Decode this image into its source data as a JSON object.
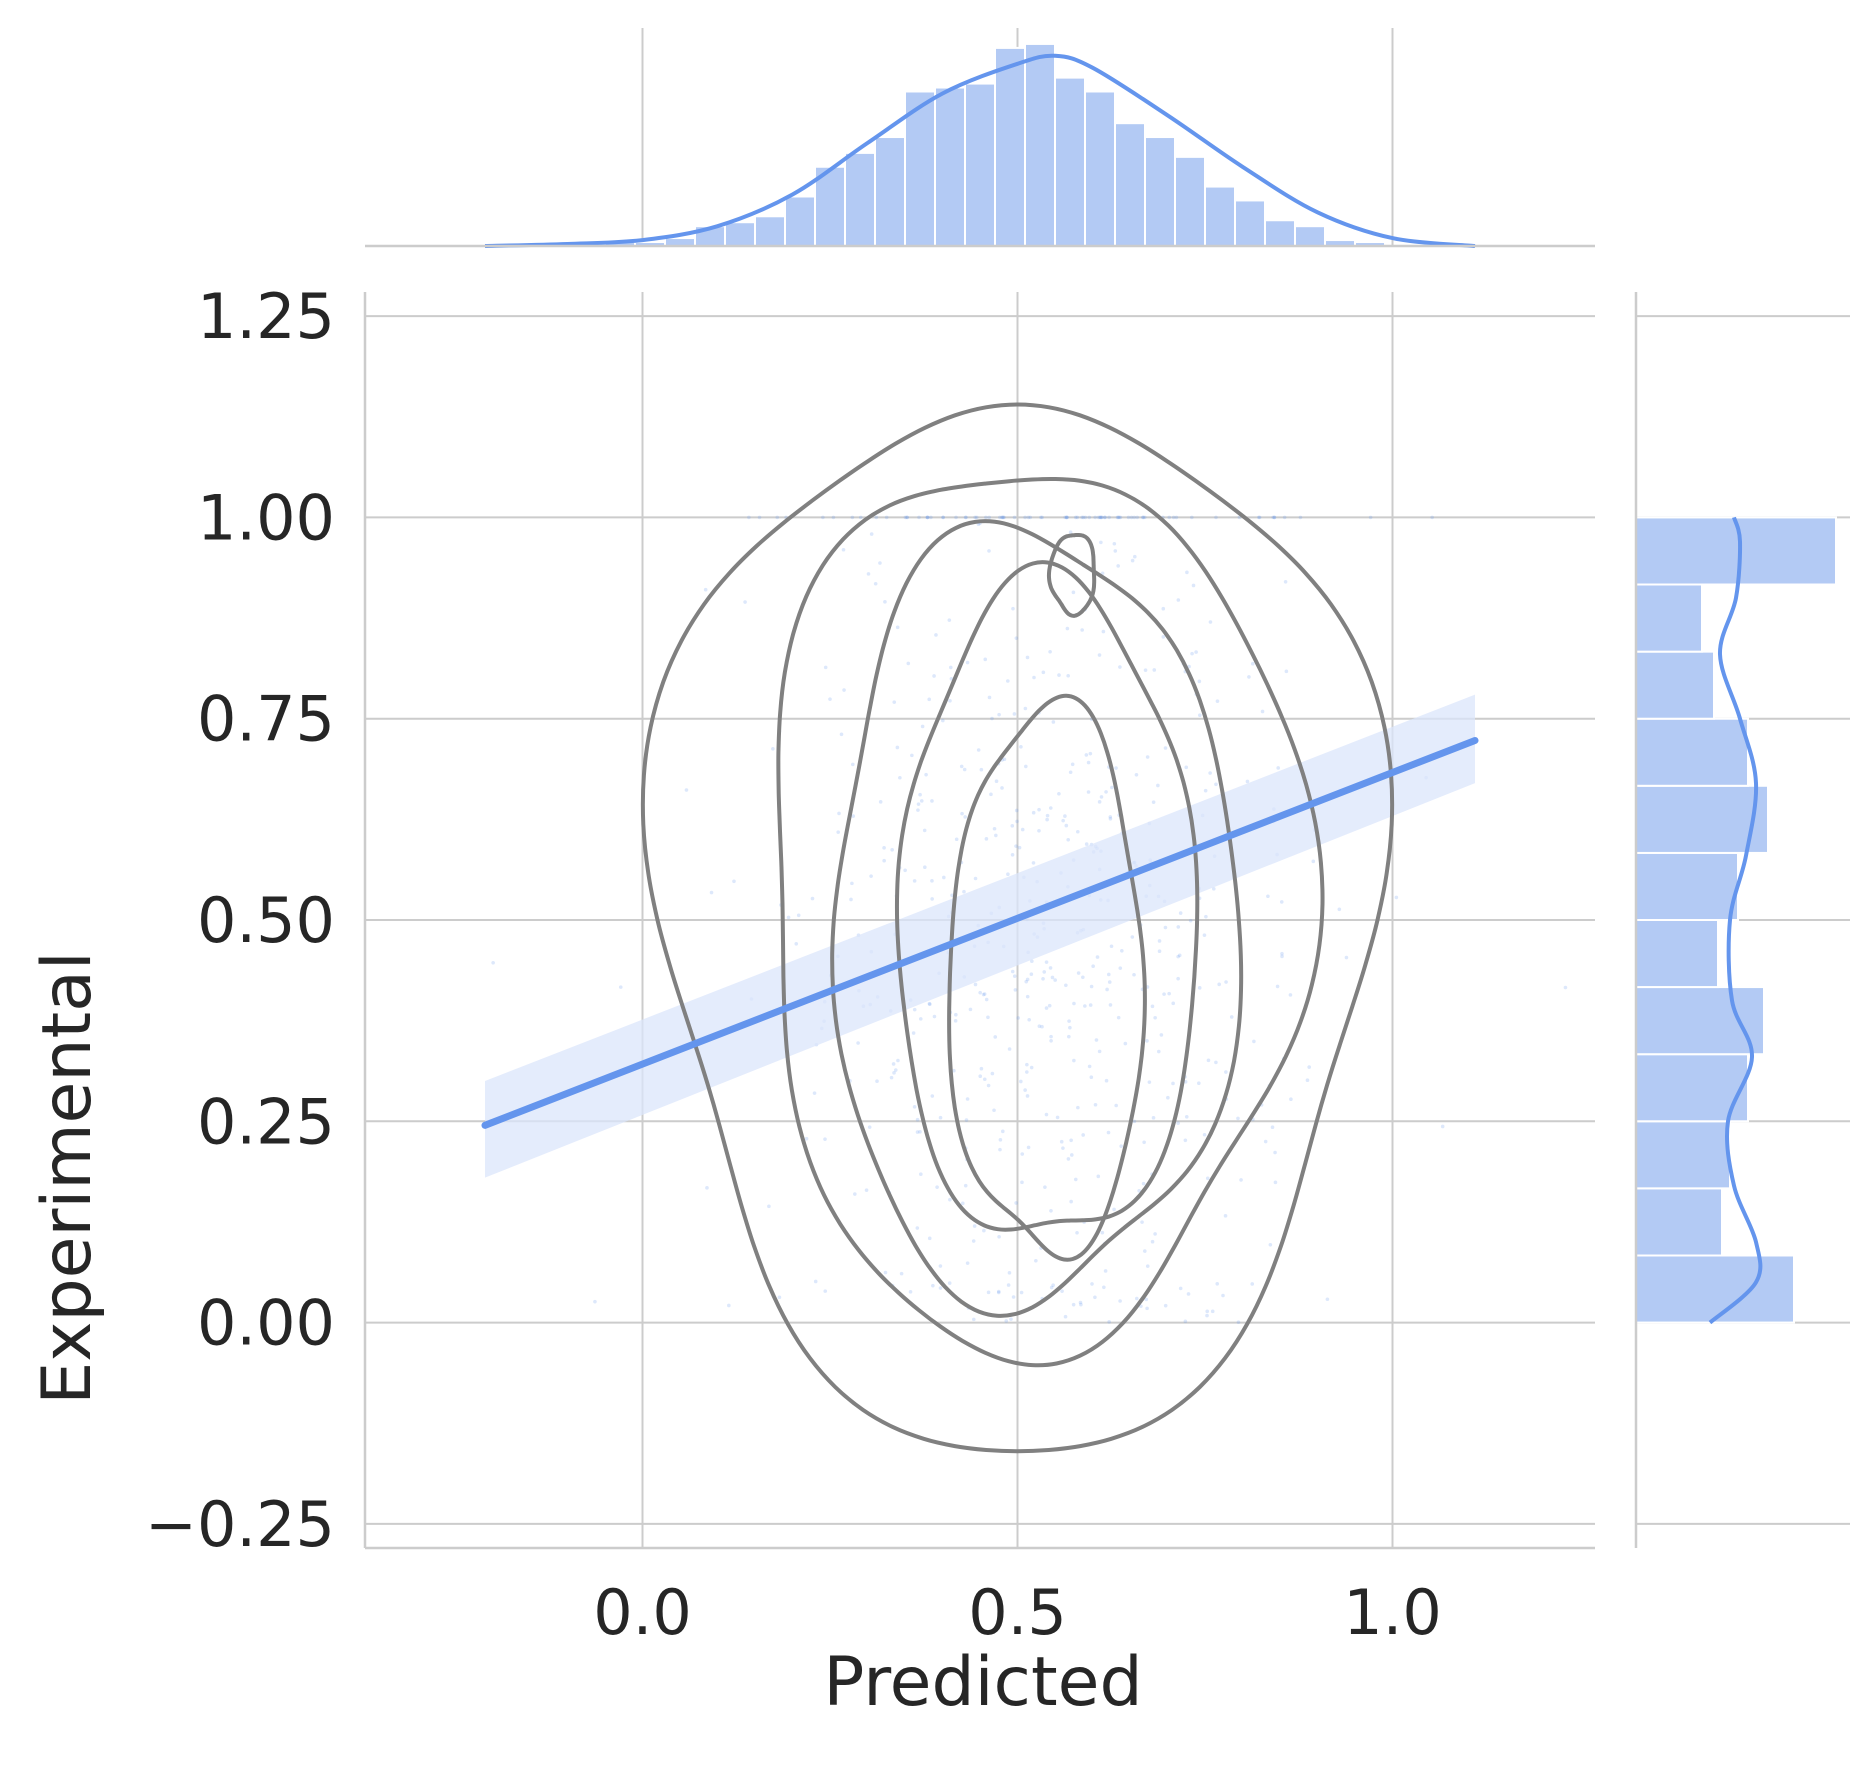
{
  "chart_data": {
    "type": "scatter",
    "xlabel": "Predicted",
    "ylabel": "Experimental",
    "xlim": [
      -0.37,
      1.27
    ],
    "ylim": [
      -0.28,
      1.28
    ],
    "x_ticks": [
      "0.0",
      "0.5",
      "1.0"
    ],
    "x_tick_values": [
      0.0,
      0.5,
      1.0
    ],
    "y_ticks": [
      "−0.25",
      "0.00",
      "0.25",
      "0.50",
      "0.75",
      "1.00",
      "1.25"
    ],
    "y_tick_values": [
      -0.25,
      0.0,
      0.25,
      0.5,
      0.75,
      1.0,
      1.25
    ],
    "grid": true,
    "colors": {
      "series": "#6495ed",
      "series_light": "#b3caf4",
      "contour": "#808080",
      "band": "#dbe6fb",
      "grid": "#cccccc"
    },
    "regression": {
      "x": [
        -0.21,
        1.11
      ],
      "y": [
        0.245,
        0.723
      ],
      "ci_low": [
        0.18,
        0.67
      ],
      "ci_high": [
        0.3,
        0.78
      ]
    },
    "kde_contour_levels": [
      {
        "cx": 0.5,
        "cy": 0.5,
        "rx": 0.48,
        "ry": 0.65
      },
      {
        "cx": 0.52,
        "cy": 0.52,
        "rx": 0.36,
        "ry": 0.55
      },
      {
        "cx": 0.52,
        "cy": 0.5,
        "rx": 0.27,
        "ry": 0.48
      },
      {
        "cx": 0.54,
        "cy": 0.5,
        "rx": 0.2,
        "ry": 0.41
      },
      {
        "cx": 0.54,
        "cy": 0.42,
        "rx": 0.13,
        "ry": 0.34
      },
      {
        "cx": 0.574,
        "cy": 0.93,
        "rx": 0.03,
        "ry": 0.05
      }
    ],
    "marginal_x_hist": {
      "bin_edges": [
        -0.05,
        -0.01,
        0.03,
        0.07,
        0.11,
        0.15,
        0.19,
        0.23,
        0.27,
        0.31,
        0.35,
        0.39,
        0.43,
        0.47,
        0.51,
        0.55,
        0.59,
        0.63,
        0.67,
        0.71,
        0.75,
        0.79,
        0.83,
        0.87,
        0.91,
        0.95,
        0.99
      ],
      "heights": [
        0.02,
        0.02,
        0.04,
        0.1,
        0.12,
        0.15,
        0.25,
        0.4,
        0.47,
        0.55,
        0.78,
        0.8,
        0.82,
        1.0,
        1.02,
        0.85,
        0.78,
        0.62,
        0.55,
        0.45,
        0.3,
        0.23,
        0.13,
        0.1,
        0.03,
        0.02
      ]
    },
    "marginal_x_kde": {
      "x": [
        -0.21,
        -0.1,
        0.0,
        0.1,
        0.2,
        0.3,
        0.4,
        0.5,
        0.55,
        0.6,
        0.7,
        0.8,
        0.9,
        1.0,
        1.11
      ],
      "density": [
        0.0,
        0.01,
        0.03,
        0.1,
        0.26,
        0.52,
        0.77,
        0.92,
        0.96,
        0.9,
        0.66,
        0.4,
        0.17,
        0.04,
        0.0
      ]
    },
    "marginal_y_hist": {
      "bin_edges": [
        0.0,
        0.0833,
        0.1667,
        0.25,
        0.3333,
        0.4167,
        0.5,
        0.5833,
        0.6667,
        0.75,
        0.8333,
        0.9167,
        1.0
      ],
      "heights": [
        0.79,
        0.43,
        0.47,
        0.56,
        0.64,
        0.41,
        0.51,
        0.66,
        0.56,
        0.39,
        0.33,
        1.0
      ]
    },
    "marginal_y_kde": {
      "y": [
        0.0,
        0.05,
        0.1,
        0.17,
        0.25,
        0.33,
        0.4,
        0.5,
        0.58,
        0.67,
        0.75,
        0.83,
        0.9,
        0.97,
        1.0
      ],
      "density": [
        0.37,
        0.6,
        0.6,
        0.49,
        0.46,
        0.58,
        0.48,
        0.47,
        0.55,
        0.6,
        0.52,
        0.42,
        0.5,
        0.52,
        0.49
      ]
    }
  }
}
